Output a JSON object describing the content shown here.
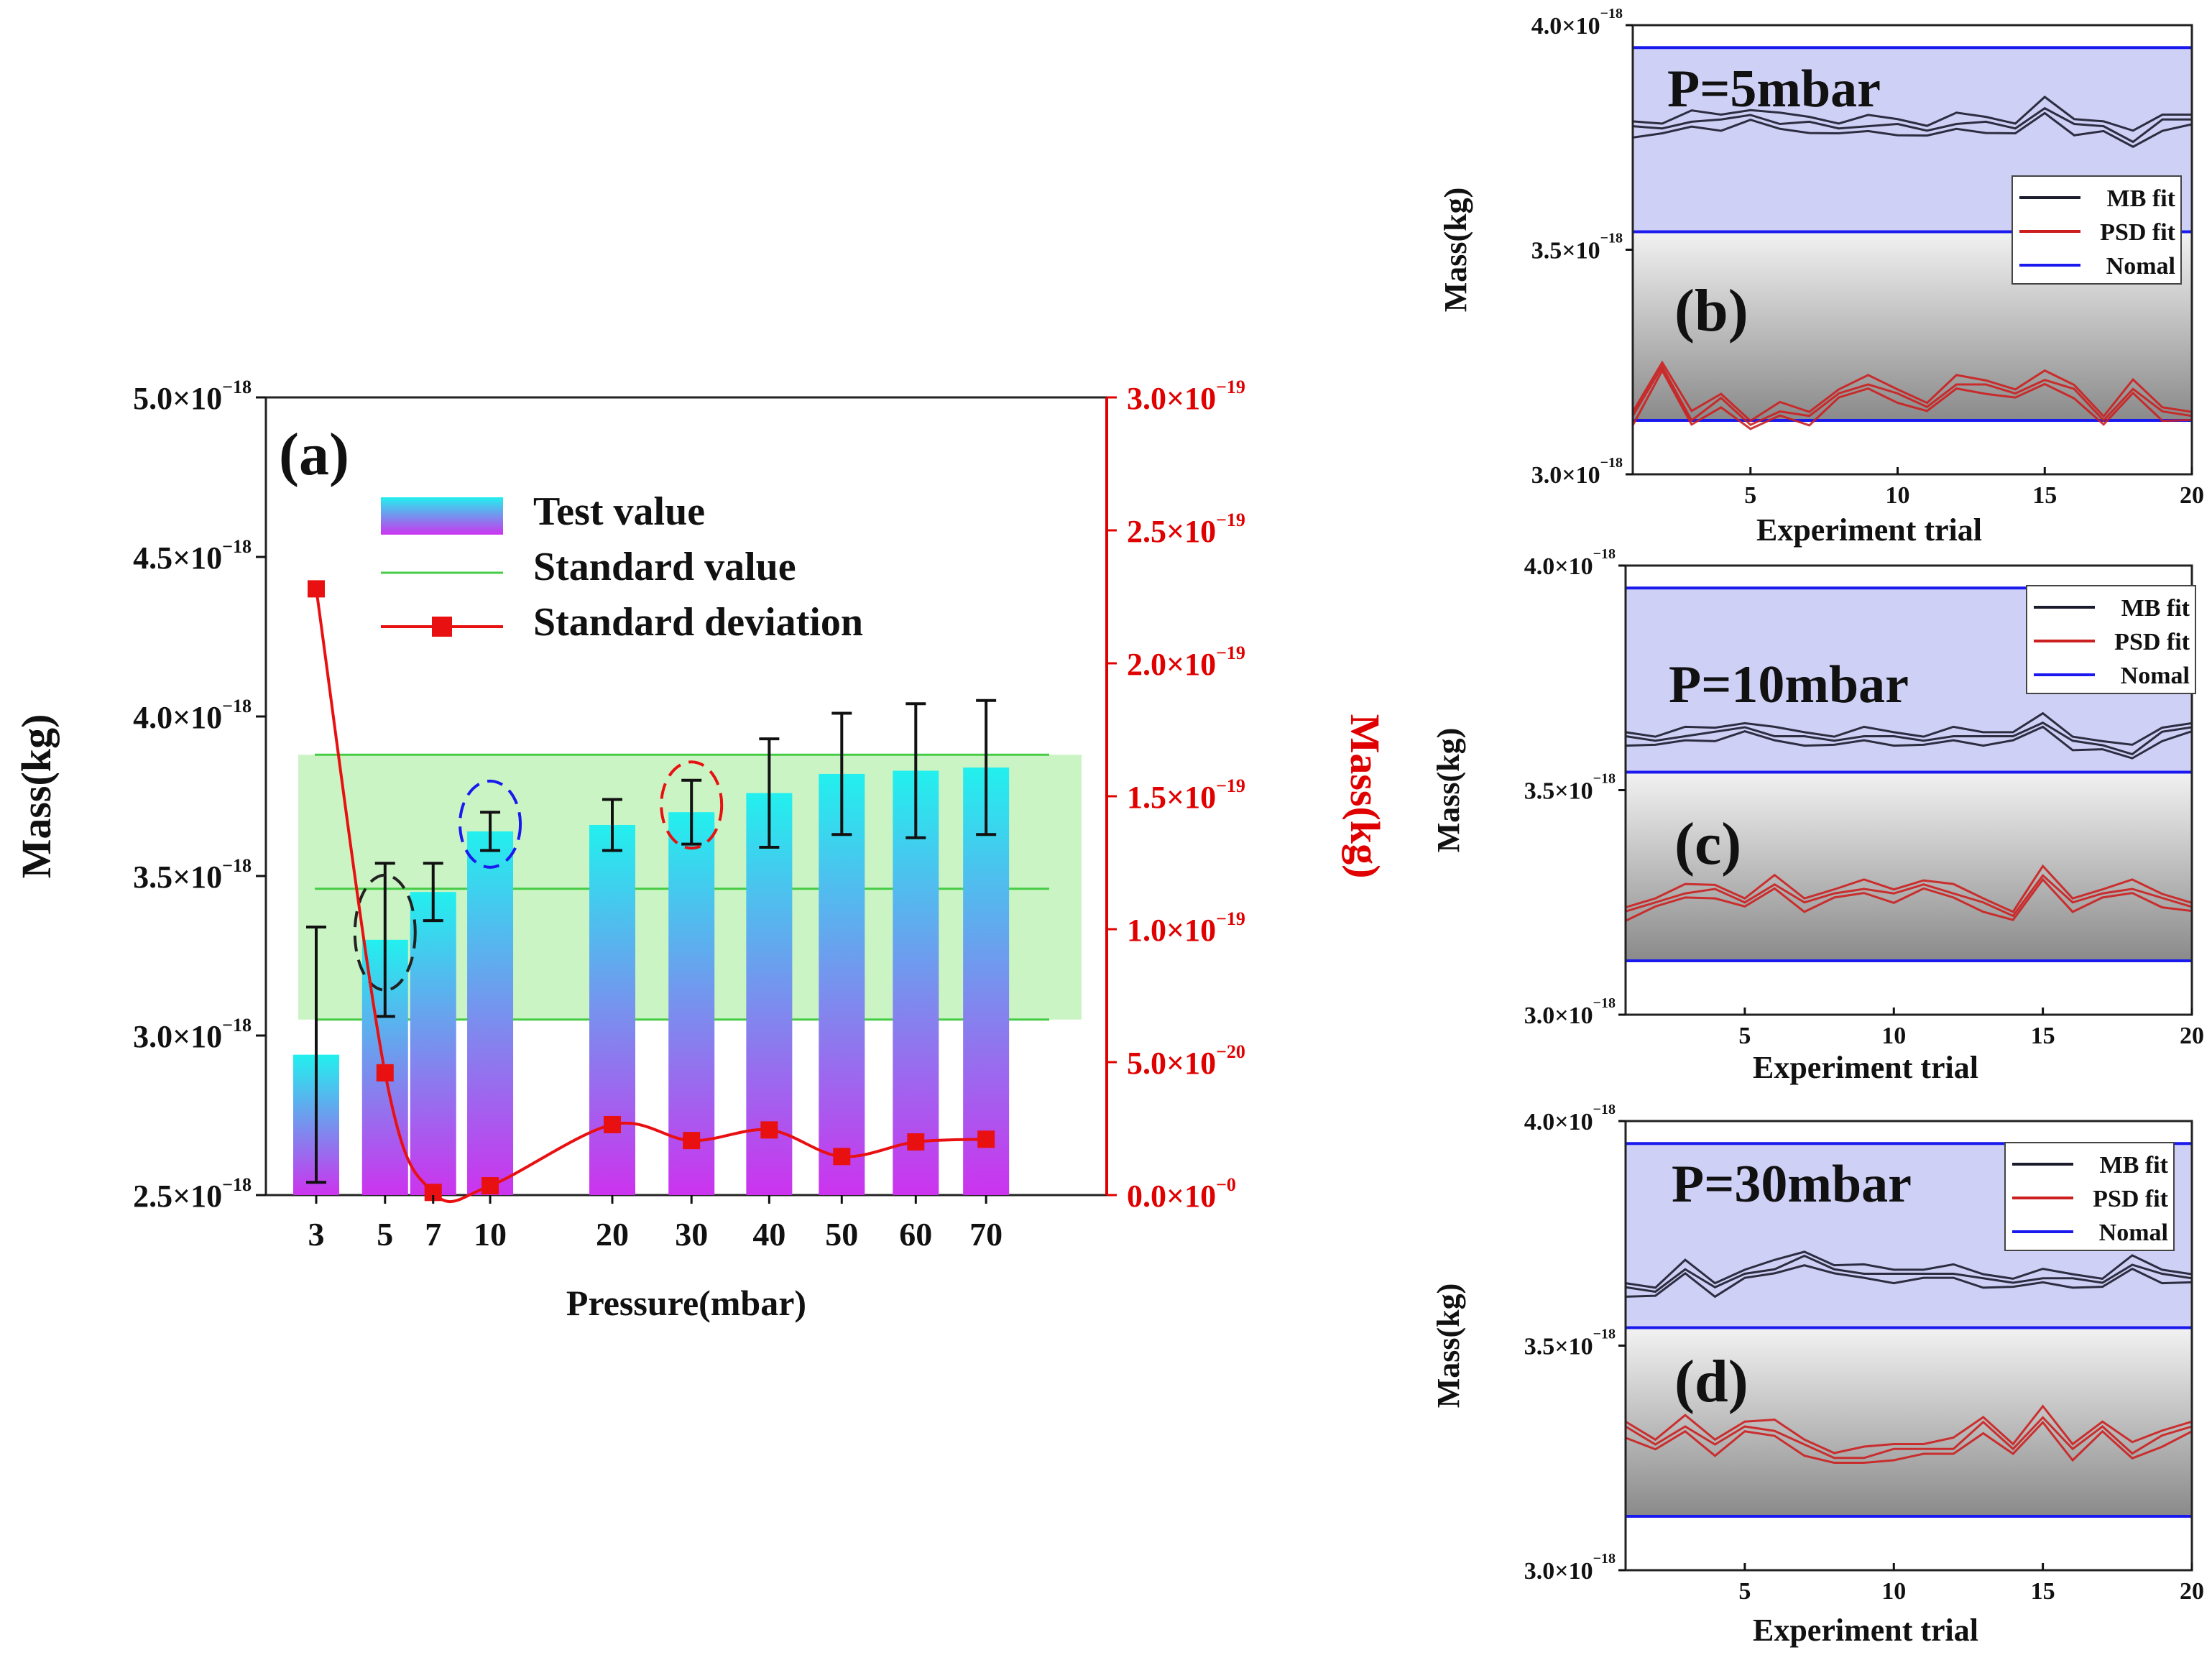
{
  "colors": {
    "bar_top": "#22f0ee",
    "bar_bottom": "#cc33ee",
    "standard_band": "#b9f0b0",
    "standard_line": "#44cc44",
    "deviation": "#e81010",
    "right_axis": "#e00000",
    "nominal": "#1a1aee",
    "mb": "#1b1b2e",
    "psd": "#cc1f1f"
  },
  "chart_data": [
    {
      "id": "a",
      "panel_label": "(a)",
      "type": "bar",
      "xlabel": "Pressure(mbar)",
      "ylabel": "Mass(kg)",
      "ylabel_right": "Mass(kg)",
      "ylim": [
        2.5e-18,
        5e-18
      ],
      "ylim_right": [
        0,
        3e-19
      ],
      "yticks": [
        {
          "value": 5e-18,
          "mant": "5.0×10",
          "exp": "−18"
        },
        {
          "value": 4.5e-18,
          "mant": "4.5×10",
          "exp": "−18"
        },
        {
          "value": 4e-18,
          "mant": "4.0×10",
          "exp": "−18"
        },
        {
          "value": 3.5e-18,
          "mant": "3.5×10",
          "exp": "−18"
        },
        {
          "value": 3e-18,
          "mant": "3.0×10",
          "exp": "−18"
        },
        {
          "value": 2.5e-18,
          "mant": "2.5×10",
          "exp": "−18"
        }
      ],
      "yticks_right": [
        {
          "value": 3e-19,
          "mant": "3.0×10",
          "exp": "−19"
        },
        {
          "value": 2.5e-19,
          "mant": "2.5×10",
          "exp": "−19"
        },
        {
          "value": 2e-19,
          "mant": "2.0×10",
          "exp": "−19"
        },
        {
          "value": 1.5e-19,
          "mant": "1.5×10",
          "exp": "−19"
        },
        {
          "value": 1e-19,
          "mant": "1.0×10",
          "exp": "−19"
        },
        {
          "value": 5e-20,
          "mant": "5.0×10",
          "exp": "−20"
        },
        {
          "value": 0,
          "mant": "0.0×10",
          "exp": "−0"
        }
      ],
      "categories": [
        "3",
        "5",
        "7",
        "10",
        "20",
        "30",
        "40",
        "50",
        "60",
        "70"
      ],
      "x_positions": [
        3,
        5,
        7,
        10,
        20,
        30,
        40,
        50,
        60,
        70
      ],
      "x_slots": [
        0,
        0.93,
        1.58,
        2.35,
        4.0,
        5.07,
        6.12,
        7.1,
        8.1,
        9.05
      ],
      "series": [
        {
          "name": "Test value",
          "values": [
            2.94e-18,
            3.3e-18,
            3.45e-18,
            3.64e-18,
            3.66e-18,
            3.7e-18,
            3.76e-18,
            3.82e-18,
            3.83e-18,
            3.84e-18
          ],
          "error": [
            4e-19,
            2.4e-19,
            9e-20,
            6e-20,
            8e-20,
            1e-19,
            1.7e-19,
            1.9e-19,
            2.1e-19,
            2.1e-19
          ]
        },
        {
          "name": "Standard deviation",
          "axis": "right",
          "values": [
            2.28e-19,
            4.6e-20,
            1e-21,
            3.5e-21,
            2.65e-20,
            2.05e-20,
            2.45e-20,
            1.45e-20,
            2e-20,
            2.1e-20
          ]
        }
      ],
      "standard": {
        "name": "Standard value",
        "nominal": 3.46e-18,
        "lower": 3.05e-18,
        "upper": 3.88e-18
      },
      "highlighted_categories": [
        {
          "category": "5",
          "color": "#222222"
        },
        {
          "category": "10",
          "color": "#1a1aee"
        },
        {
          "category": "30",
          "color": "#e81010"
        }
      ],
      "legend": [
        "Test value",
        "Standard value",
        "Standard deviation"
      ]
    },
    {
      "id": "b",
      "panel_label": "(b)",
      "pressure_label": "P=5mbar",
      "type": "line",
      "xlabel": "Experiment trial",
      "ylabel": "Mass(kg)",
      "xlim": [
        1,
        20
      ],
      "ylim": [
        3e-18,
        4e-18
      ],
      "xticks": [
        5,
        10,
        15,
        20
      ],
      "yticks": [
        {
          "value": 4e-18,
          "mant": "4.0×10",
          "exp": "−18"
        },
        {
          "value": 3.5e-18,
          "mant": "3.5×10",
          "exp": "−18"
        },
        {
          "value": 3e-18,
          "mant": "3.0×10",
          "exp": "−18"
        }
      ],
      "nominal_lines": [
        3.95e-18,
        3.54e-18,
        3.12e-18
      ],
      "x": [
        1,
        2,
        3,
        4,
        5,
        6,
        7,
        8,
        9,
        10,
        11,
        12,
        13,
        14,
        15,
        16,
        17,
        18,
        19,
        20
      ],
      "mb": [
        3.775e-18,
        3.77e-18,
        3.785e-18,
        3.79e-18,
        3.8e-18,
        3.78e-18,
        3.785e-18,
        3.77e-18,
        3.775e-18,
        3.78e-18,
        3.765e-18,
        3.78e-18,
        3.785e-18,
        3.77e-18,
        3.815e-18,
        3.78e-18,
        3.775e-18,
        3.74e-18,
        3.79e-18,
        3.79e-18
      ],
      "mb_spread": 1.8e-20,
      "psd": [
        3.13e-18,
        3.24e-18,
        3.12e-18,
        3.17e-18,
        3.11e-18,
        3.14e-18,
        3.13e-18,
        3.18e-18,
        3.2e-18,
        3.18e-18,
        3.15e-18,
        3.2e-18,
        3.2e-18,
        3.18e-18,
        3.21e-18,
        3.19e-18,
        3.12e-18,
        3.19e-18,
        3.14e-18,
        3.13e-18
      ],
      "psd_spread": 1.5e-20,
      "legend": [
        "MB fit",
        "PSD fit",
        "Nomal"
      ]
    },
    {
      "id": "c",
      "panel_label": "(c)",
      "pressure_label": "P=10mbar",
      "type": "line",
      "xlabel": "Experiment trial",
      "ylabel": "Mass(kg)",
      "xlim": [
        1,
        20
      ],
      "ylim": [
        3e-18,
        4e-18
      ],
      "xticks": [
        5,
        10,
        15,
        20
      ],
      "yticks": [
        {
          "value": 4e-18,
          "mant": "4.0×10",
          "exp": "−18"
        },
        {
          "value": 3.5e-18,
          "mant": "3.5×10",
          "exp": "−18"
        },
        {
          "value": 3e-18,
          "mant": "3.0×10",
          "exp": "−18"
        }
      ],
      "nominal_lines": [
        3.95e-18,
        3.54e-18,
        3.12e-18
      ],
      "x": [
        1,
        2,
        3,
        4,
        5,
        6,
        7,
        8,
        9,
        10,
        11,
        12,
        13,
        14,
        15,
        16,
        17,
        18,
        19,
        20
      ],
      "mb": [
        3.62e-18,
        3.61e-18,
        3.62e-18,
        3.63e-18,
        3.64e-18,
        3.62e-18,
        3.62e-18,
        3.61e-18,
        3.62e-18,
        3.62e-18,
        3.61e-18,
        3.62e-18,
        3.62e-18,
        3.62e-18,
        3.65e-18,
        3.61e-18,
        3.6e-18,
        3.58e-18,
        3.63e-18,
        3.64e-18
      ],
      "mb_spread": 1.5e-20,
      "psd": [
        3.23e-18,
        3.25e-18,
        3.27e-18,
        3.28e-18,
        3.25e-18,
        3.29e-18,
        3.25e-18,
        3.27e-18,
        3.28e-18,
        3.27e-18,
        3.29e-18,
        3.27e-18,
        3.25e-18,
        3.22e-18,
        3.31e-18,
        3.25e-18,
        3.27e-18,
        3.28e-18,
        3.26e-18,
        3.24e-18
      ],
      "psd_spread": 1.5e-20,
      "legend": [
        "MB fit",
        "PSD fit",
        "Nomal"
      ]
    },
    {
      "id": "d",
      "panel_label": "(d)",
      "pressure_label": "P=30mbar",
      "type": "line",
      "xlabel": "Experiment trial",
      "ylabel": "Mass(kg)",
      "xlim": [
        1,
        20
      ],
      "ylim": [
        3e-18,
        4e-18
      ],
      "xticks": [
        5,
        10,
        15,
        20
      ],
      "yticks": [
        {
          "value": 4e-18,
          "mant": "4.0×10",
          "exp": "−18"
        },
        {
          "value": 3.5e-18,
          "mant": "3.5×10",
          "exp": "−18"
        },
        {
          "value": 3e-18,
          "mant": "3.0×10",
          "exp": "−18"
        }
      ],
      "nominal_lines": [
        3.95e-18,
        3.54e-18,
        3.12e-18
      ],
      "x": [
        1,
        2,
        3,
        4,
        5,
        6,
        7,
        8,
        9,
        10,
        11,
        12,
        13,
        14,
        15,
        16,
        17,
        18,
        19,
        20
      ],
      "mb": [
        3.63e-18,
        3.62e-18,
        3.67e-18,
        3.63e-18,
        3.66e-18,
        3.67e-18,
        3.7e-18,
        3.67e-18,
        3.66e-18,
        3.66e-18,
        3.66e-18,
        3.66e-18,
        3.65e-18,
        3.64e-18,
        3.65e-18,
        3.65e-18,
        3.64e-18,
        3.68e-18,
        3.66e-18,
        3.65e-18
      ],
      "mb_spread": 1.5e-20,
      "psd": [
        3.32e-18,
        3.28e-18,
        3.32e-18,
        3.28e-18,
        3.32e-18,
        3.31e-18,
        3.28e-18,
        3.25e-18,
        3.25e-18,
        3.27e-18,
        3.27e-18,
        3.27e-18,
        3.33e-18,
        3.27e-18,
        3.34e-18,
        3.27e-18,
        3.32e-18,
        3.26e-18,
        3.3e-18,
        3.32e-18
      ],
      "psd_spread": 1.8e-20,
      "legend": [
        "MB fit",
        "PSD fit",
        "Nomal"
      ]
    }
  ]
}
